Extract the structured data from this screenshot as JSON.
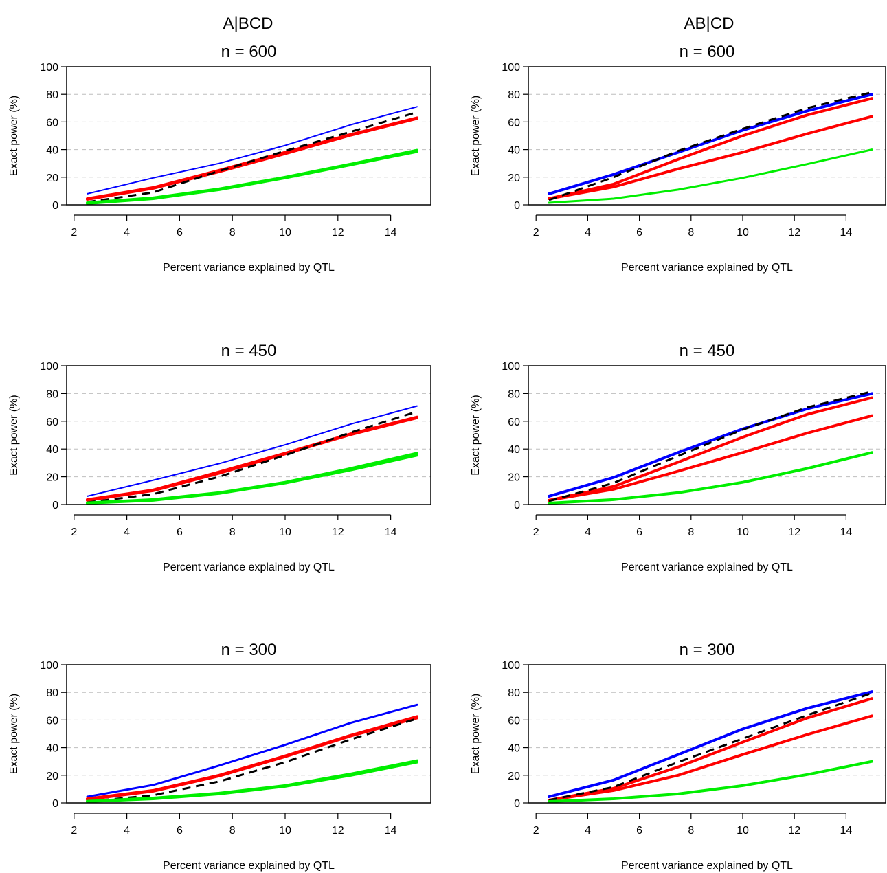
{
  "column_headers": [
    "A|BCD",
    "AB|CD"
  ],
  "colors": {
    "blue": "#0000ff",
    "red": "#ff0000",
    "green": "#00ee00",
    "black": "#000000",
    "grid": "#bebebe"
  },
  "chart_data": [
    {
      "type": "line",
      "title": "n = 600",
      "xlabel": "Percent variance explained by QTL",
      "ylabel": "Exact power (%)",
      "xlim": [
        2,
        15
      ],
      "ylim": [
        0,
        100
      ],
      "xticks": [
        2,
        4,
        6,
        8,
        10,
        12,
        14
      ],
      "yticks": [
        0,
        20,
        40,
        60,
        80,
        100
      ],
      "grid": "horizontal dashed",
      "x": [
        2.5,
        5,
        7.5,
        10,
        12.5,
        15
      ],
      "series": [
        {
          "color": "blue",
          "style": "solid",
          "width": 2,
          "values": [
            8,
            19.5,
            30,
            43,
            58,
            71
          ]
        },
        {
          "color": "red",
          "style": "solid",
          "width": 4,
          "values": [
            4,
            12,
            24,
            37,
            50.5,
            62.5
          ]
        },
        {
          "color": "red",
          "style": "solid",
          "width": 4,
          "values": [
            4.5,
            12.5,
            25,
            38,
            51,
            63
          ]
        },
        {
          "color": "black",
          "style": "dashed",
          "width": 3,
          "values": [
            2,
            9,
            24.5,
            39,
            53,
            67
          ]
        },
        {
          "color": "green",
          "style": "solid",
          "width": 4,
          "values": [
            1,
            4.5,
            11,
            19.5,
            29,
            38.5
          ]
        },
        {
          "color": "green",
          "style": "solid",
          "width": 4,
          "values": [
            1.5,
            5,
            11.5,
            20,
            29.5,
            39.5
          ]
        }
      ]
    },
    {
      "type": "line",
      "title": "n = 600",
      "xlabel": "Percent variance explained by QTL",
      "ylabel": "Exact power (%)",
      "xlim": [
        2,
        15
      ],
      "ylim": [
        0,
        100
      ],
      "xticks": [
        2,
        4,
        6,
        8,
        10,
        12,
        14
      ],
      "yticks": [
        0,
        20,
        40,
        60,
        80,
        100
      ],
      "grid": "horizontal dashed",
      "x": [
        2.5,
        5,
        7.5,
        10,
        12.5,
        15
      ],
      "series": [
        {
          "color": "blue",
          "style": "solid",
          "width": 4,
          "values": [
            8,
            22,
            38,
            54,
            68,
            80
          ]
        },
        {
          "color": "red",
          "style": "solid",
          "width": 4,
          "values": [
            4.5,
            15,
            33,
            50,
            65,
            77
          ]
        },
        {
          "color": "red",
          "style": "solid",
          "width": 4,
          "values": [
            4.5,
            13,
            26,
            38,
            51.5,
            64
          ]
        },
        {
          "color": "black",
          "style": "dashed",
          "width": 3,
          "values": [
            3.5,
            20,
            39,
            55,
            70,
            81.5
          ]
        },
        {
          "color": "green",
          "style": "solid",
          "width": 3,
          "values": [
            1.5,
            4.5,
            11,
            19.5,
            29.5,
            40
          ]
        }
      ]
    },
    {
      "type": "line",
      "title": "n = 450",
      "xlabel": "Percent variance explained by QTL",
      "ylabel": "Exact power (%)",
      "xlim": [
        2,
        15
      ],
      "ylim": [
        0,
        100
      ],
      "xticks": [
        2,
        4,
        6,
        8,
        10,
        12,
        14
      ],
      "yticks": [
        0,
        20,
        40,
        60,
        80,
        100
      ],
      "grid": "horizontal dashed",
      "x": [
        2.5,
        5,
        7.5,
        10,
        12.5,
        15
      ],
      "series": [
        {
          "color": "blue",
          "style": "solid",
          "width": 2,
          "values": [
            6,
            17.5,
            29.5,
            43,
            58,
            71
          ]
        },
        {
          "color": "red",
          "style": "solid",
          "width": 4,
          "values": [
            3,
            10,
            22.5,
            36.5,
            50.5,
            62.5
          ]
        },
        {
          "color": "red",
          "style": "solid",
          "width": 4,
          "values": [
            3.5,
            10.5,
            23.5,
            37,
            51,
            63
          ]
        },
        {
          "color": "black",
          "style": "dashed",
          "width": 3,
          "values": [
            1.5,
            7.5,
            20,
            35.5,
            52,
            67
          ]
        },
        {
          "color": "green",
          "style": "solid",
          "width": 4,
          "values": [
            1,
            3,
            8,
            15.5,
            25,
            35.5
          ]
        },
        {
          "color": "green",
          "style": "solid",
          "width": 4,
          "values": [
            1.2,
            3.5,
            8.5,
            16,
            26,
            37
          ]
        }
      ]
    },
    {
      "type": "line",
      "title": "n = 450",
      "xlabel": "Percent variance explained by QTL",
      "ylabel": "Exact power (%)",
      "xlim": [
        2,
        15
      ],
      "ylim": [
        0,
        100
      ],
      "xticks": [
        2,
        4,
        6,
        8,
        10,
        12,
        14
      ],
      "yticks": [
        0,
        20,
        40,
        60,
        80,
        100
      ],
      "grid": "horizontal dashed",
      "x": [
        2.5,
        5,
        7.5,
        10,
        12.5,
        15
      ],
      "series": [
        {
          "color": "blue",
          "style": "solid",
          "width": 4,
          "values": [
            6,
            19.5,
            37.5,
            54.5,
            69,
            80
          ]
        },
        {
          "color": "red",
          "style": "solid",
          "width": 4,
          "values": [
            3,
            13,
            30.5,
            48.5,
            65,
            77
          ]
        },
        {
          "color": "red",
          "style": "solid",
          "width": 4,
          "values": [
            3,
            11,
            24,
            37.5,
            51.5,
            64
          ]
        },
        {
          "color": "black",
          "style": "dashed",
          "width": 3,
          "values": [
            2.5,
            15.5,
            35,
            54,
            70,
            81.5
          ]
        },
        {
          "color": "green",
          "style": "solid",
          "width": 4,
          "values": [
            1,
            3.5,
            8.5,
            16,
            26,
            37.5
          ]
        }
      ]
    },
    {
      "type": "line",
      "title": "n = 300",
      "xlabel": "Percent variance explained by QTL",
      "ylabel": "Exact power (%)",
      "xlim": [
        2,
        15
      ],
      "ylim": [
        0,
        100
      ],
      "xticks": [
        2,
        4,
        6,
        8,
        10,
        12,
        14
      ],
      "yticks": [
        0,
        20,
        40,
        60,
        80,
        100
      ],
      "grid": "horizontal dashed",
      "x": [
        2.5,
        5,
        7.5,
        10,
        12.5,
        15
      ],
      "series": [
        {
          "color": "blue",
          "style": "solid",
          "width": 3,
          "values": [
            4.5,
            13,
            27,
            42,
            58,
            71
          ]
        },
        {
          "color": "red",
          "style": "solid",
          "width": 4,
          "values": [
            2.5,
            8.5,
            19.5,
            33.5,
            48.5,
            61.5
          ]
        },
        {
          "color": "red",
          "style": "solid",
          "width": 4,
          "values": [
            3,
            9,
            20,
            34,
            49,
            62.5
          ]
        },
        {
          "color": "black",
          "style": "dashed",
          "width": 3,
          "values": [
            1,
            5.5,
            15.5,
            29.5,
            46,
            61
          ]
        },
        {
          "color": "green",
          "style": "solid",
          "width": 4,
          "values": [
            1,
            3,
            6.5,
            12,
            20,
            29.5
          ]
        },
        {
          "color": "green",
          "style": "solid",
          "width": 4,
          "values": [
            1.2,
            3.5,
            7,
            12.5,
            21,
            30.5
          ]
        }
      ]
    },
    {
      "type": "line",
      "title": "n = 300",
      "xlabel": "Percent variance explained by QTL",
      "ylabel": "Exact power (%)",
      "xlim": [
        2,
        15
      ],
      "ylim": [
        0,
        100
      ],
      "xticks": [
        2,
        4,
        6,
        8,
        10,
        12,
        14
      ],
      "yticks": [
        0,
        20,
        40,
        60,
        80,
        100
      ],
      "grid": "horizontal dashed",
      "x": [
        2.5,
        5,
        7.5,
        10,
        12.5,
        15
      ],
      "series": [
        {
          "color": "blue",
          "style": "solid",
          "width": 4,
          "values": [
            4.5,
            16.5,
            35,
            53.5,
            68.5,
            80.5
          ]
        },
        {
          "color": "red",
          "style": "solid",
          "width": 4,
          "values": [
            2,
            10.5,
            26,
            44,
            61.5,
            75.5
          ]
        },
        {
          "color": "red",
          "style": "solid",
          "width": 4,
          "values": [
            2,
            9,
            20,
            35,
            49.5,
            63
          ]
        },
        {
          "color": "black",
          "style": "dashed",
          "width": 3,
          "values": [
            2,
            11.5,
            29.5,
            46.5,
            63.5,
            79.5
          ]
        },
        {
          "color": "green",
          "style": "solid",
          "width": 4,
          "values": [
            1,
            3,
            6.5,
            12.5,
            20.5,
            30
          ]
        }
      ]
    }
  ]
}
